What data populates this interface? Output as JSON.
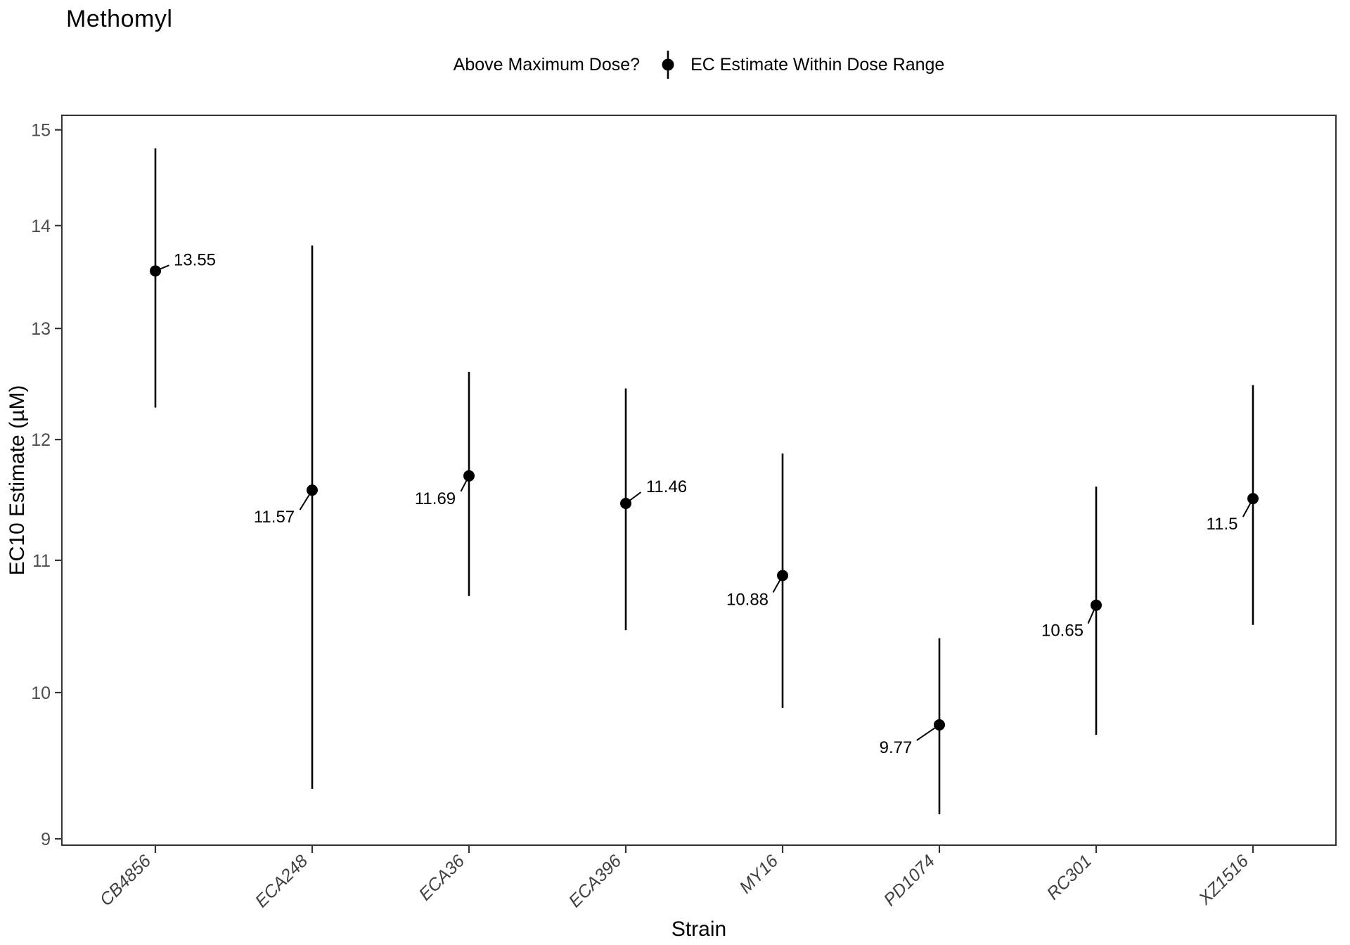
{
  "title": "Methomyl",
  "legend": {
    "title": "Above Maximum Dose?",
    "items": [
      {
        "label": "EC Estimate Within Dose Range",
        "symbol": "pointrange-icon",
        "color": "#000000"
      }
    ]
  },
  "chart_data": {
    "type": "pointrange-scatter",
    "title": "Methomyl",
    "xlabel": "Strain",
    "ylabel": "EC10 Estimate (µM)",
    "y_scale": "log10",
    "y_ticks": [
      15,
      14,
      13,
      12,
      11,
      10,
      9
    ],
    "y_range_shown": [
      8.96,
      15.16
    ],
    "grid": "off",
    "legend_position": "top-center",
    "point_color": "#000000",
    "categories": [
      "CB4856",
      "ECA248",
      "ECA36",
      "ECA396",
      "MY16",
      "PD1074",
      "RC301",
      "XZ1516"
    ],
    "series": [
      {
        "strain": "CB4856",
        "estimate": 13.55,
        "lower": 12.28,
        "upper": 14.8,
        "value_label": "13.55",
        "label_side": "right",
        "label_dx": 56,
        "label_dy": -16
      },
      {
        "strain": "ECA248",
        "estimate": 11.57,
        "lower": 9.33,
        "upper": 13.8,
        "value_label": "11.57",
        "label_side": "left",
        "label_dx": -54,
        "label_dy": 38
      },
      {
        "strain": "ECA36",
        "estimate": 11.69,
        "lower": 10.72,
        "upper": 12.6,
        "value_label": "11.69",
        "label_side": "left",
        "label_dx": -48,
        "label_dy": 32
      },
      {
        "strain": "ECA396",
        "estimate": 11.46,
        "lower": 10.46,
        "upper": 12.45,
        "value_label": "11.46",
        "label_side": "right",
        "label_dx": 58,
        "label_dy": -24
      },
      {
        "strain": "MY16",
        "estimate": 10.88,
        "lower": 9.89,
        "upper": 11.88,
        "value_label": "10.88",
        "label_side": "left",
        "label_dx": -50,
        "label_dy": 34
      },
      {
        "strain": "PD1074",
        "estimate": 9.77,
        "lower": 9.16,
        "upper": 10.4,
        "value_label": "9.77",
        "label_side": "left",
        "label_dx": -62,
        "label_dy": 32
      },
      {
        "strain": "RC301",
        "estimate": 10.65,
        "lower": 9.7,
        "upper": 11.6,
        "value_label": "10.65",
        "label_side": "left",
        "label_dx": -48,
        "label_dy": 36
      },
      {
        "strain": "XZ1516",
        "estimate": 11.5,
        "lower": 10.5,
        "upper": 12.48,
        "value_label": "11.5",
        "label_side": "left",
        "label_dx": -44,
        "label_dy": 36
      }
    ]
  },
  "colors": {
    "background": "#ffffff",
    "panel_border": "#333333",
    "tick": "#333333",
    "tick_text": "#4d4d4d",
    "data": "#000000"
  }
}
